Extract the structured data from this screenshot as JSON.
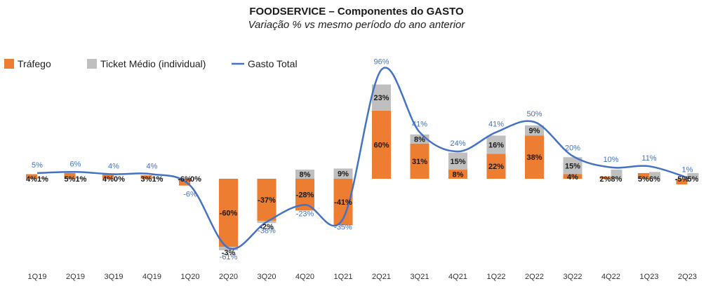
{
  "chart_data": {
    "type": "bar",
    "title": "FOODSERVICE – Componentes do GASTO",
    "subtitle": "Variação % vs mesmo período do ano anterior",
    "categories": [
      "1Q19",
      "2Q19",
      "3Q19",
      "4Q19",
      "1Q20",
      "2Q20",
      "3Q20",
      "4Q20",
      "1Q21",
      "2Q21",
      "3Q21",
      "4Q21",
      "1Q22",
      "2Q22",
      "3Q22",
      "4Q22",
      "1Q23",
      "2Q23"
    ],
    "series": [
      {
        "name": "Tráfego",
        "type": "bar",
        "color": "#ED7D31",
        "values": [
          4,
          5,
          4,
          3,
          -6,
          -60,
          -37,
          -28,
          -41,
          60,
          31,
          8,
          22,
          38,
          4,
          2,
          5,
          -5
        ]
      },
      {
        "name": "Ticket Médio (individual)",
        "type": "bar",
        "color": "#BFBFBF",
        "values": [
          1,
          1,
          0,
          1,
          0,
          -3,
          -2,
          8,
          9,
          23,
          8,
          15,
          16,
          9,
          15,
          8,
          6,
          5
        ]
      },
      {
        "name": "Gasto Total",
        "type": "line",
        "color": "#4472C4",
        "values": [
          5,
          6,
          4,
          4,
          -6,
          -61,
          -38,
          -23,
          -35,
          96,
          41,
          24,
          41,
          50,
          20,
          10,
          11,
          1
        ]
      }
    ],
    "ylim": [
      -70,
      100
    ],
    "legend": "top-left",
    "grid": false
  }
}
